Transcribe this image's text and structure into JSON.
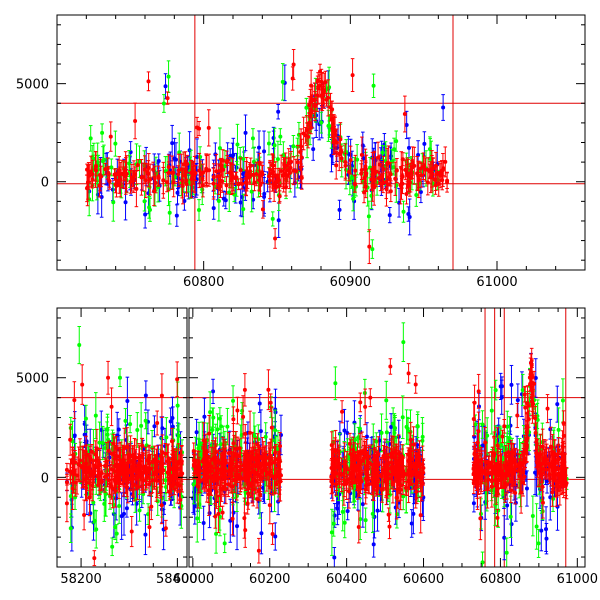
{
  "colors": {
    "red": "#ff0000",
    "green": "#00ff00",
    "blue": "#0000ff",
    "axis": "#000000",
    "background": "#ffffff"
  },
  "chart_data": [
    {
      "type": "scatter",
      "title": "",
      "xlabel": "",
      "ylabel": "",
      "xlim": [
        60700,
        61060
      ],
      "ylim": [
        -4500,
        8500
      ],
      "x_ticks": [
        60800,
        60900,
        61000
      ],
      "y_ticks": [
        0,
        5000
      ],
      "x_tick_labels": [
        "60800",
        "60900",
        "61000"
      ],
      "y_tick_labels": [
        "0",
        "5000"
      ],
      "reference_hlines": [
        4000,
        -100
      ],
      "reference_vlines": [
        60794,
        60970
      ],
      "series": [
        {
          "name": "blue",
          "color": "#0000ff",
          "x_range": [
            60720,
            60965
          ],
          "baseline": 200,
          "peak_x": 60880,
          "peak_height": 3800,
          "peak_width": 9
        },
        {
          "name": "green",
          "color": "#00ff00",
          "x_range": [
            60720,
            60965
          ],
          "baseline": 400,
          "peak_x": 60880,
          "peak_height": 4000,
          "peak_width": 9
        },
        {
          "name": "red",
          "color": "#ff0000",
          "x_range": [
            60720,
            60970
          ],
          "baseline": 300,
          "peak_x": 60880,
          "peak_height": 4500,
          "peak_width": 8
        }
      ]
    },
    {
      "type": "scatter",
      "title": "",
      "xlabel": "",
      "ylabel": "",
      "xlim": [
        58150,
        61020
      ],
      "ylim": [
        -4500,
        8500
      ],
      "axis_break": {
        "left_segment": [
          58150,
          58420
        ],
        "right_segment": [
          59990,
          61020
        ]
      },
      "x_ticks": [
        58200,
        58400,
        60000,
        60200,
        60400,
        60600,
        60800,
        61000
      ],
      "y_ticks": [
        0,
        5000
      ],
      "x_tick_labels": [
        "58200",
        "58400",
        "60000",
        "60200",
        "60400",
        "60600",
        "60800",
        "61000"
      ],
      "y_tick_labels": [
        "0",
        "5000"
      ],
      "reference_hlines": [
        4000,
        -100
      ],
      "reference_vlines": [
        60760,
        60785,
        60810,
        60970
      ],
      "observing_seasons": [
        [
          58170,
          58410
        ],
        [
          60000,
          60230
        ],
        [
          60360,
          60600
        ],
        [
          60730,
          60975
        ]
      ],
      "series": [
        {
          "name": "blue",
          "color": "#0000ff",
          "baseline": 300,
          "peak_x": 60880,
          "peak_height": 3800,
          "peak_width": 9
        },
        {
          "name": "green",
          "color": "#00ff00",
          "baseline": 600,
          "peak_x": 60880,
          "peak_height": 4000,
          "peak_width": 9
        },
        {
          "name": "red",
          "color": "#ff0000",
          "baseline": 400,
          "peak_x": 60880,
          "peak_height": 4500,
          "peak_width": 8
        }
      ]
    }
  ]
}
